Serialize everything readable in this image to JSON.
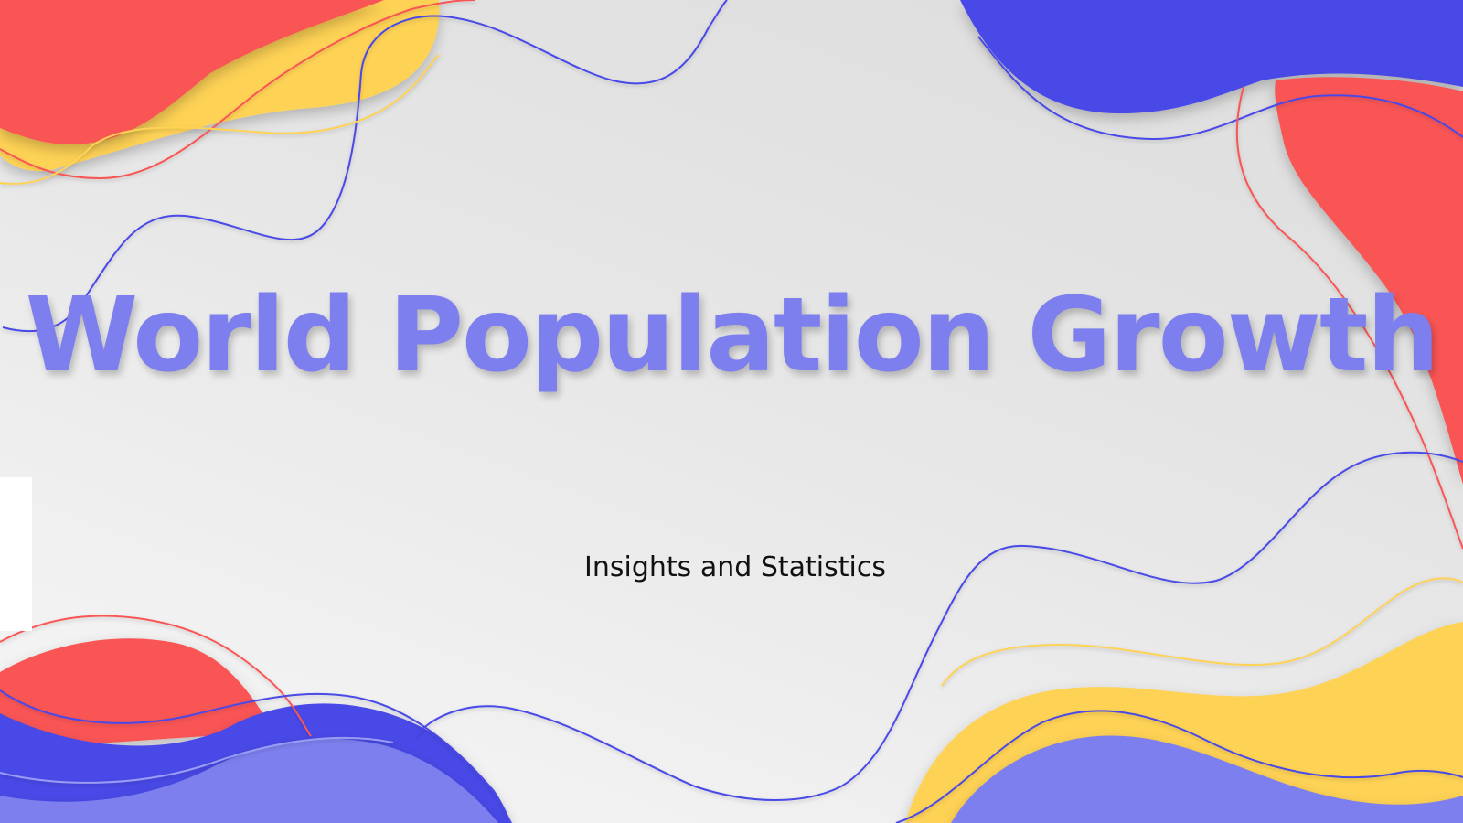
{
  "slide": {
    "title": "World Population Growth",
    "subtitle": "Insights and Statistics"
  },
  "colors": {
    "background": "#e4e4e4",
    "title": "#7d7fef",
    "subtitle": "#111111",
    "red_blob": "#fa5555",
    "yellow_blob": "#fed254",
    "blue_blob": "#4849e8",
    "lavender_blob": "#7d7fef",
    "blue_line": "#4849e8",
    "red_line": "#fa5555",
    "yellow_line": "#fed254"
  }
}
